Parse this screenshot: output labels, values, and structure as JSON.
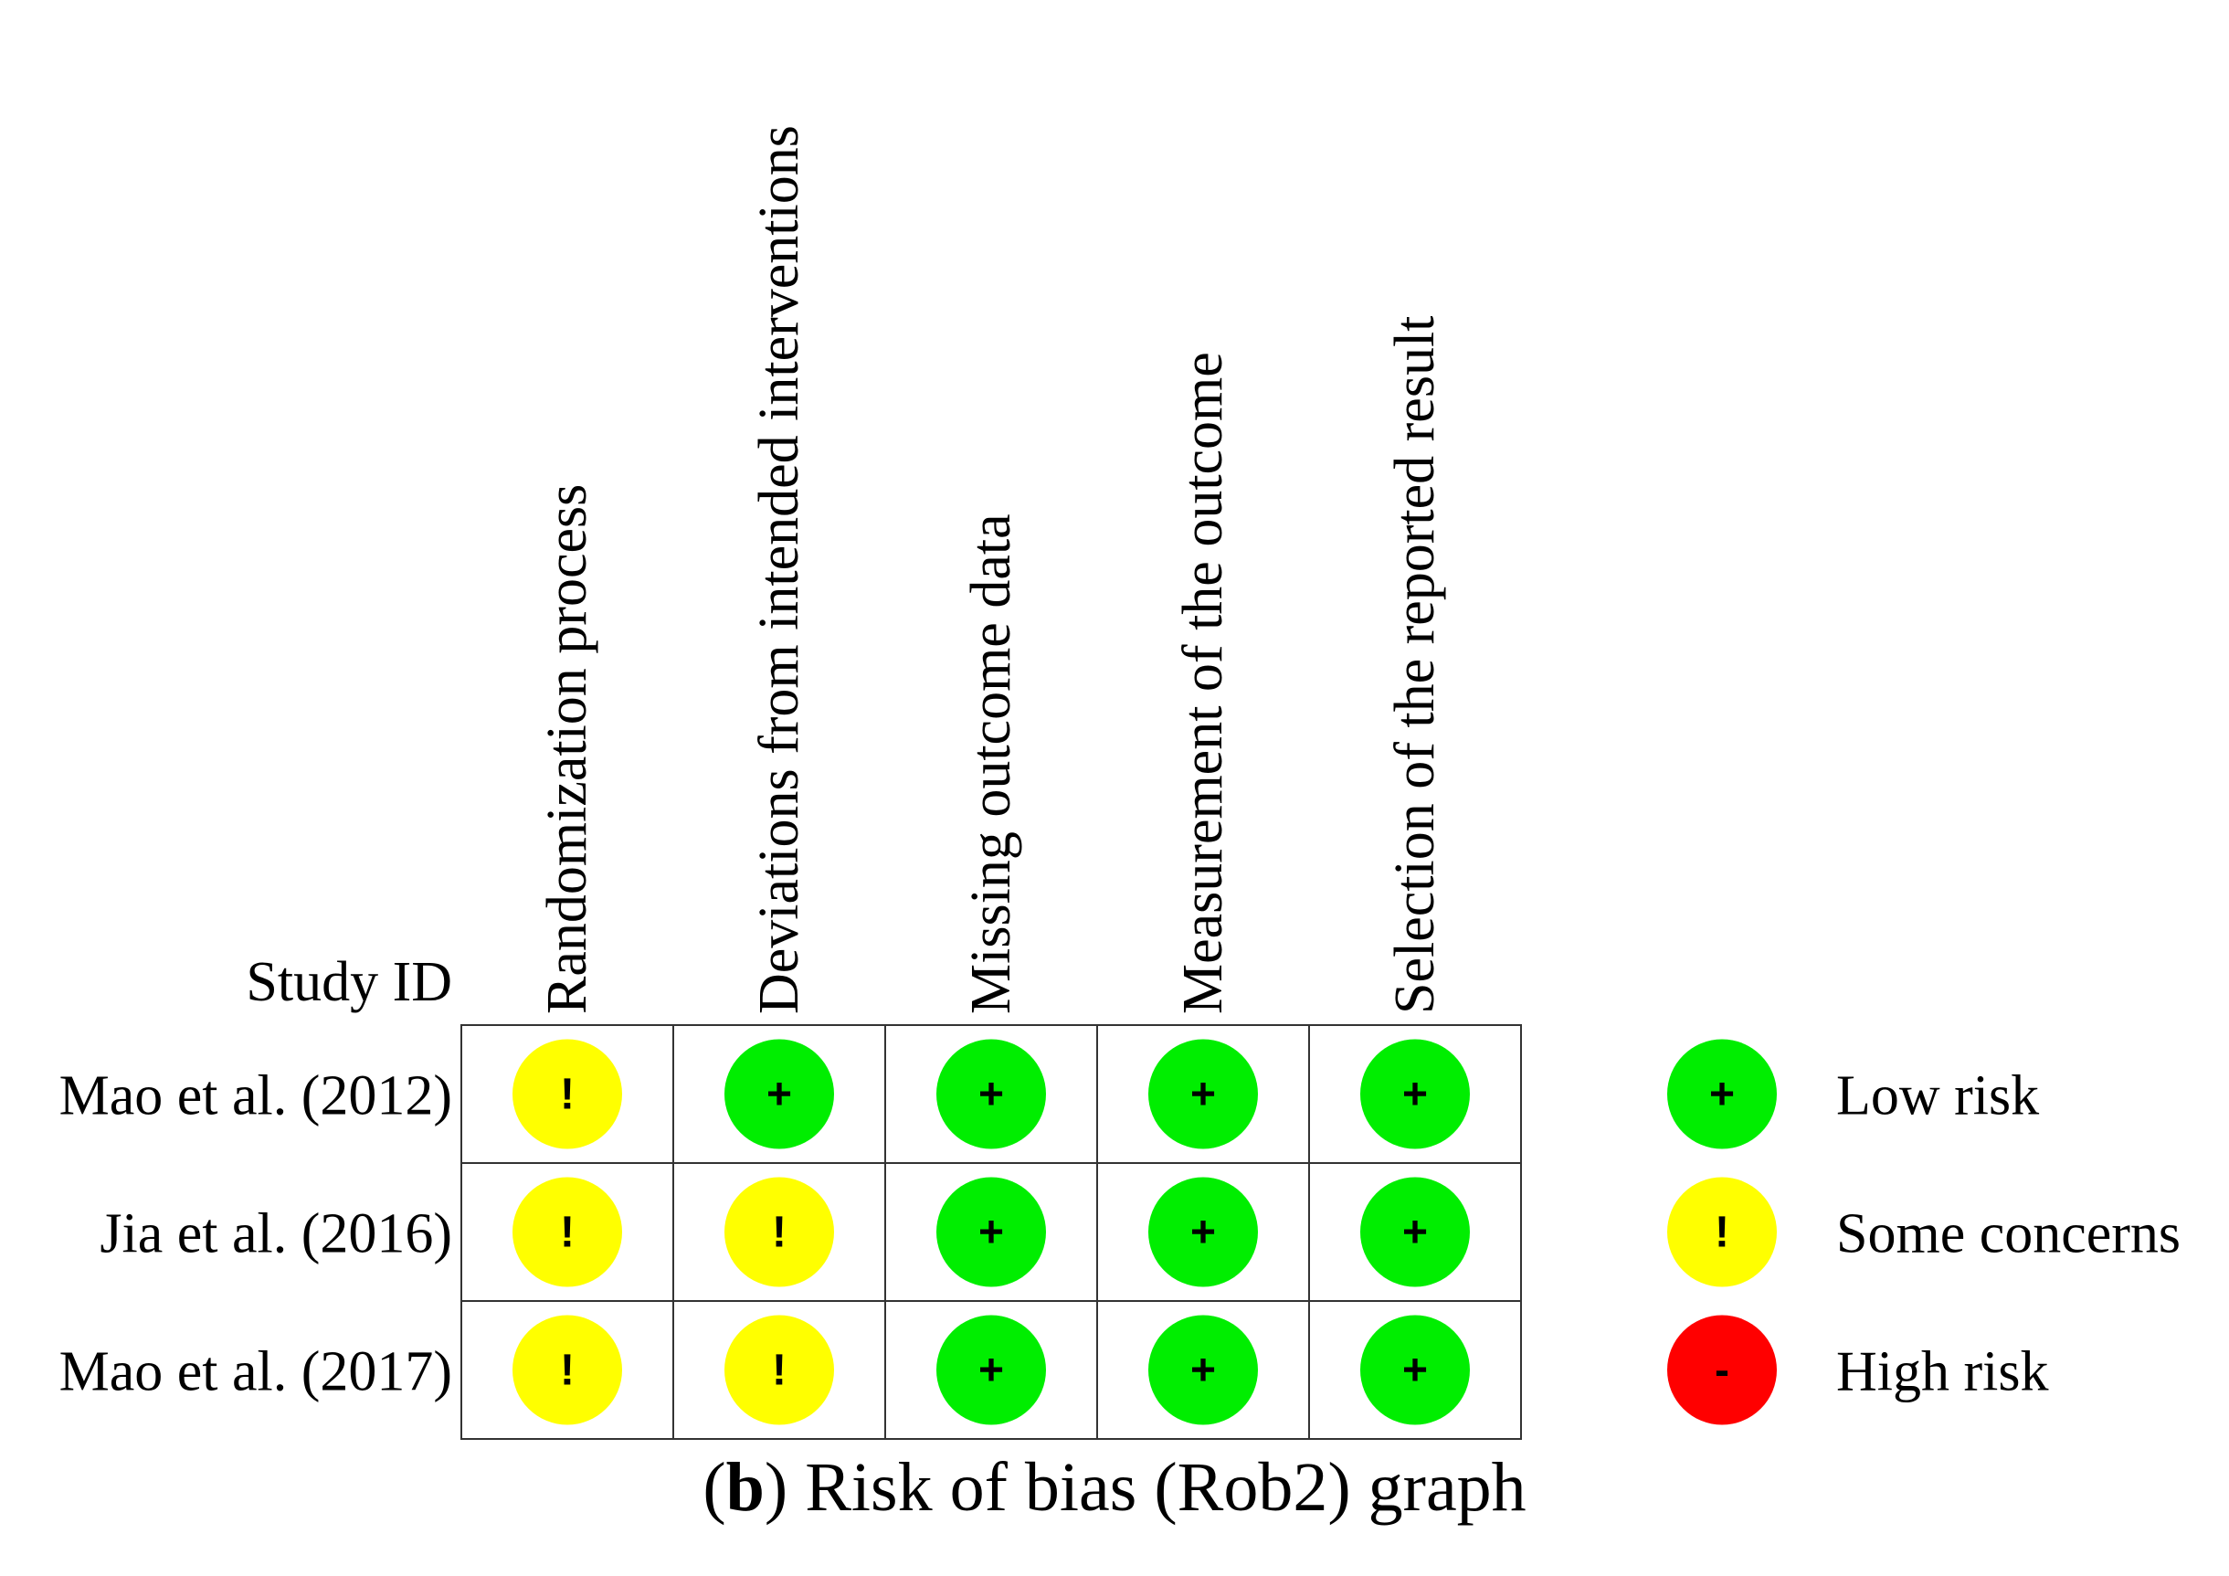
{
  "chart_data": {
    "type": "table",
    "title": "Risk of bias (Rob2) graph",
    "panel_label": "b",
    "row_header": "Study ID",
    "domains": [
      "Randomization process",
      "Deviations from intended interventions",
      "Missing outcome data",
      "Measurement of the outcome",
      "Selection of the reported result"
    ],
    "studies": [
      "Mao et al. (2012)",
      "Jia et al. (2016)",
      "Mao et al. (2017)"
    ],
    "judgements": [
      [
        "some",
        "low",
        "low",
        "low",
        "low"
      ],
      [
        "some",
        "some",
        "low",
        "low",
        "low"
      ],
      [
        "some",
        "some",
        "low",
        "low",
        "low"
      ]
    ],
    "legend": [
      {
        "key": "low",
        "label": "Low risk",
        "symbol": "+",
        "color": "#00ee00"
      },
      {
        "key": "some",
        "label": "Some concerns",
        "symbol": "!",
        "color": "#ffff00"
      },
      {
        "key": "high",
        "label": "High risk",
        "symbol": "-",
        "color": "#ff0000"
      }
    ]
  }
}
